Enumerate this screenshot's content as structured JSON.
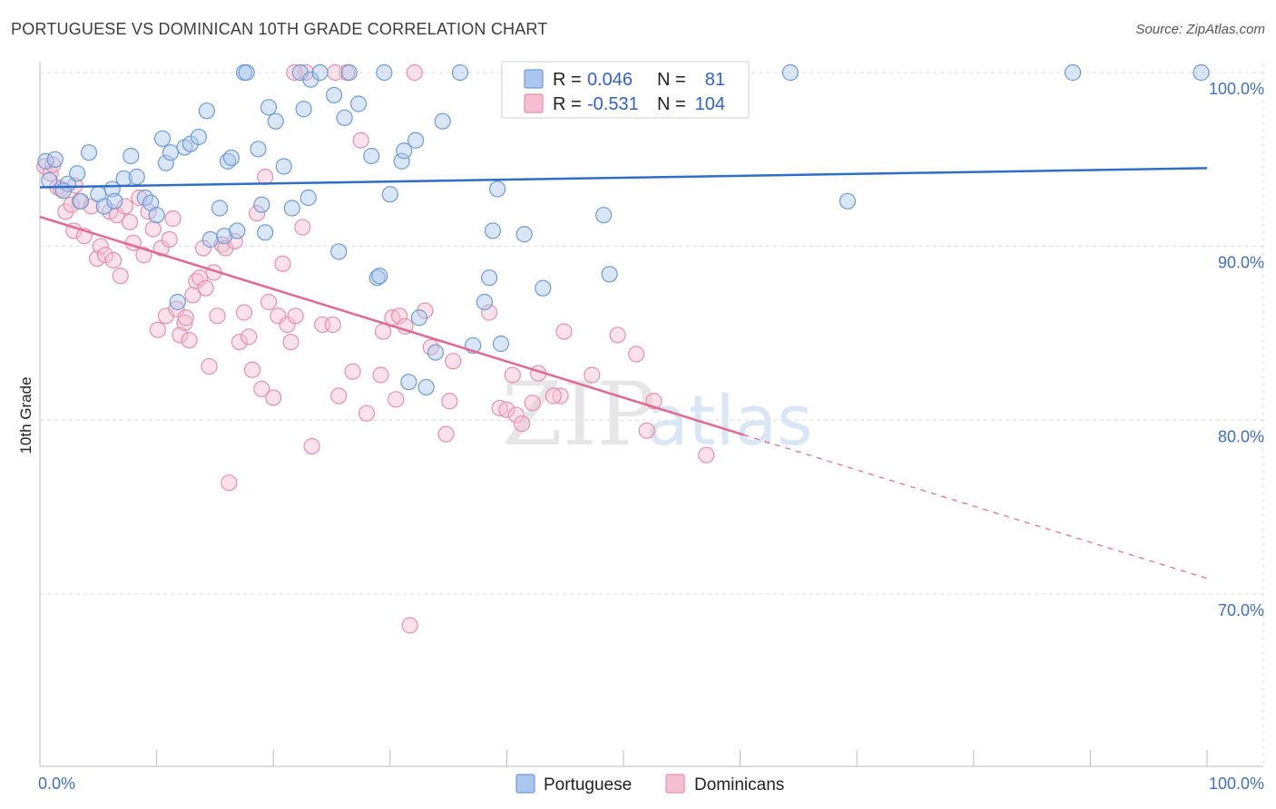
{
  "title": "PORTUGUESE VS DOMINICAN 10TH GRADE CORRELATION CHART",
  "source": "Source: ZipAtlas.com",
  "watermark": {
    "zip": "ZIP",
    "atlas": "atlas"
  },
  "colors": {
    "blue_fill": "#aac8ef",
    "blue_stroke": "#6d9ad8",
    "blue_line": "#2f6dc7",
    "pink_fill": "#f6bfd0",
    "pink_stroke": "#e88fab",
    "pink_line": "#e06891",
    "tick_label": "#3f6fc6",
    "grid": "#dcdcdc"
  },
  "legend": {
    "rows": [
      {
        "r_label": "R =",
        "r_value": "0.046",
        "n_label": "N =",
        "n_value": "81",
        "series": "blue"
      },
      {
        "r_label": "R =",
        "r_value": "-0.531",
        "n_label": "N =",
        "n_value": "104",
        "series": "pink"
      }
    ]
  },
  "bottom_legend": [
    {
      "label": "Portuguese",
      "series": "blue"
    },
    {
      "label": "Dominicans",
      "series": "pink"
    }
  ],
  "chart_data": {
    "type": "scatter",
    "title": "PORTUGUESE VS DOMINICAN 10TH GRADE CORRELATION CHART",
    "xlabel": "",
    "ylabel": "10th Grade",
    "xlim": [
      0,
      100
    ],
    "ylim": [
      60.5,
      101.5
    ],
    "x_tick_labels": [
      {
        "value": 0,
        "label": "0.0%"
      },
      {
        "value": 100,
        "label": "100.0%"
      }
    ],
    "y_tick_labels": [
      {
        "value": 100,
        "label": "100.0%"
      },
      {
        "value": 90,
        "label": "90.0%"
      },
      {
        "value": 80,
        "label": "80.0%"
      },
      {
        "value": 70,
        "label": "70.0%"
      }
    ],
    "grid": true,
    "legend_position": "top-center",
    "series": [
      {
        "name": "Portuguese",
        "color": "#6d9ad8",
        "trend": {
          "x": [
            0,
            100
          ],
          "y": [
            93.4,
            94.5
          ],
          "dashed_from": null
        },
        "points": [
          [
            0.5,
            94.9
          ],
          [
            1.3,
            95.0
          ],
          [
            2.4,
            93.6
          ],
          [
            3.5,
            92.6
          ],
          [
            4.2,
            95.4
          ],
          [
            5.0,
            93.0
          ],
          [
            5.5,
            92.3
          ],
          [
            6.2,
            93.3
          ],
          [
            6.4,
            92.6
          ],
          [
            7.2,
            93.9
          ],
          [
            7.8,
            95.2
          ],
          [
            8.3,
            94.0
          ],
          [
            9.0,
            92.8
          ],
          [
            9.5,
            92.5
          ],
          [
            10.0,
            91.8
          ],
          [
            10.5,
            96.2
          ],
          [
            10.8,
            94.8
          ],
          [
            11.2,
            95.4
          ],
          [
            11.8,
            86.8
          ],
          [
            12.4,
            95.7
          ],
          [
            12.9,
            95.9
          ],
          [
            13.6,
            96.3
          ],
          [
            14.3,
            97.8
          ],
          [
            14.6,
            90.4
          ],
          [
            15.4,
            92.2
          ],
          [
            15.8,
            90.6
          ],
          [
            16.1,
            94.9
          ],
          [
            16.4,
            95.1
          ],
          [
            16.9,
            90.9
          ],
          [
            17.5,
            100.0
          ],
          [
            17.7,
            100.0
          ],
          [
            18.7,
            95.6
          ],
          [
            19.0,
            92.4
          ],
          [
            19.3,
            90.8
          ],
          [
            19.6,
            98.0
          ],
          [
            20.2,
            97.2
          ],
          [
            20.9,
            94.6
          ],
          [
            21.6,
            92.2
          ],
          [
            22.3,
            100.0
          ],
          [
            22.6,
            97.9
          ],
          [
            23.0,
            92.8
          ],
          [
            23.2,
            99.6
          ],
          [
            24.0,
            100.0
          ],
          [
            25.2,
            98.7
          ],
          [
            25.6,
            89.7
          ],
          [
            26.1,
            97.4
          ],
          [
            26.5,
            100.0
          ],
          [
            27.3,
            98.2
          ],
          [
            28.4,
            95.2
          ],
          [
            28.9,
            88.2
          ],
          [
            29.1,
            88.3
          ],
          [
            29.5,
            100.0
          ],
          [
            31.0,
            94.9
          ],
          [
            31.2,
            95.5
          ],
          [
            31.6,
            82.2
          ],
          [
            32.2,
            96.1
          ],
          [
            32.5,
            85.9
          ],
          [
            33.1,
            81.9
          ],
          [
            33.9,
            83.9
          ],
          [
            34.5,
            97.2
          ],
          [
            36.0,
            100.0
          ],
          [
            37.1,
            84.3
          ],
          [
            38.1,
            86.8
          ],
          [
            38.5,
            88.2
          ],
          [
            38.8,
            90.9
          ],
          [
            39.2,
            93.3
          ],
          [
            39.5,
            84.4
          ],
          [
            41.5,
            90.7
          ],
          [
            43.1,
            87.6
          ],
          [
            45.0,
            100.0
          ],
          [
            48.3,
            91.8
          ],
          [
            48.8,
            88.4
          ],
          [
            64.3,
            100.0
          ],
          [
            69.2,
            92.6
          ],
          [
            88.5,
            100.0
          ],
          [
            99.5,
            100.0
          ],
          [
            0.8,
            93.8
          ],
          [
            3.2,
            94.2
          ],
          [
            2.0,
            93.2
          ],
          [
            52.0,
            100.0
          ],
          [
            30.0,
            93.0
          ]
        ]
      },
      {
        "name": "Dominicans",
        "color": "#e88fab",
        "trend": {
          "x": [
            0,
            100
          ],
          "y": [
            91.7,
            70.9
          ],
          "solid_until_x": 60.3
        },
        "points": [
          [
            0.4,
            94.6
          ],
          [
            0.9,
            94.2
          ],
          [
            1.5,
            93.4
          ],
          [
            1.8,
            93.3
          ],
          [
            2.2,
            92.0
          ],
          [
            2.7,
            92.4
          ],
          [
            2.9,
            90.9
          ],
          [
            3.4,
            92.6
          ],
          [
            3.8,
            90.6
          ],
          [
            4.4,
            92.3
          ],
          [
            4.9,
            89.3
          ],
          [
            5.2,
            90.0
          ],
          [
            5.6,
            89.5
          ],
          [
            6.0,
            92.0
          ],
          [
            6.3,
            89.2
          ],
          [
            6.6,
            91.8
          ],
          [
            6.9,
            88.3
          ],
          [
            7.3,
            92.3
          ],
          [
            7.7,
            91.4
          ],
          [
            8.0,
            90.2
          ],
          [
            8.5,
            92.8
          ],
          [
            8.9,
            89.5
          ],
          [
            9.3,
            92.0
          ],
          [
            9.7,
            91.0
          ],
          [
            10.1,
            85.2
          ],
          [
            10.4,
            89.9
          ],
          [
            10.8,
            86.0
          ],
          [
            11.1,
            90.4
          ],
          [
            11.4,
            91.6
          ],
          [
            11.7,
            86.4
          ],
          [
            12.0,
            84.9
          ],
          [
            12.4,
            85.6
          ],
          [
            12.8,
            84.6
          ],
          [
            13.1,
            87.2
          ],
          [
            13.4,
            88.0
          ],
          [
            13.7,
            88.2
          ],
          [
            14.0,
            89.9
          ],
          [
            14.2,
            87.6
          ],
          [
            14.5,
            83.1
          ],
          [
            14.9,
            88.5
          ],
          [
            15.2,
            86.0
          ],
          [
            15.6,
            90.1
          ],
          [
            15.9,
            89.9
          ],
          [
            16.2,
            76.4
          ],
          [
            16.7,
            90.3
          ],
          [
            17.1,
            84.5
          ],
          [
            17.5,
            86.2
          ],
          [
            17.9,
            84.8
          ],
          [
            18.2,
            82.9
          ],
          [
            18.6,
            91.9
          ],
          [
            19.0,
            81.8
          ],
          [
            19.3,
            94.0
          ],
          [
            19.6,
            86.8
          ],
          [
            20.0,
            81.3
          ],
          [
            20.4,
            86.0
          ],
          [
            20.8,
            89.0
          ],
          [
            21.2,
            85.5
          ],
          [
            21.5,
            84.5
          ],
          [
            21.9,
            86.0
          ],
          [
            22.5,
            91.1
          ],
          [
            22.8,
            100.0
          ],
          [
            23.3,
            78.5
          ],
          [
            24.2,
            85.5
          ],
          [
            25.1,
            85.5
          ],
          [
            25.6,
            81.4
          ],
          [
            26.3,
            100.0
          ],
          [
            26.8,
            82.8
          ],
          [
            27.5,
            96.1
          ],
          [
            28.0,
            80.4
          ],
          [
            29.2,
            82.6
          ],
          [
            29.4,
            85.1
          ],
          [
            30.2,
            85.9
          ],
          [
            30.5,
            81.2
          ],
          [
            30.8,
            86.0
          ],
          [
            31.3,
            85.4
          ],
          [
            31.7,
            68.2
          ],
          [
            32.1,
            100.0
          ],
          [
            33.0,
            86.3
          ],
          [
            33.5,
            84.2
          ],
          [
            34.8,
            79.2
          ],
          [
            35.1,
            81.1
          ],
          [
            35.4,
            83.4
          ],
          [
            38.5,
            86.2
          ],
          [
            39.4,
            80.7
          ],
          [
            40.0,
            80.6
          ],
          [
            40.5,
            82.6
          ],
          [
            40.8,
            80.3
          ],
          [
            41.3,
            79.8
          ],
          [
            42.2,
            81.0
          ],
          [
            42.7,
            82.7
          ],
          [
            44.6,
            81.4
          ],
          [
            44.9,
            85.1
          ],
          [
            47.3,
            82.6
          ],
          [
            49.5,
            84.9
          ],
          [
            51.1,
            83.8
          ],
          [
            52.0,
            79.4
          ],
          [
            52.6,
            81.1
          ],
          [
            57.1,
            78.0
          ],
          [
            21.8,
            100.0
          ],
          [
            44.0,
            81.4
          ],
          [
            1.1,
            94.7
          ],
          [
            3.0,
            93.5
          ],
          [
            12.5,
            85.9
          ],
          [
            25.3,
            100.0
          ]
        ]
      }
    ]
  }
}
